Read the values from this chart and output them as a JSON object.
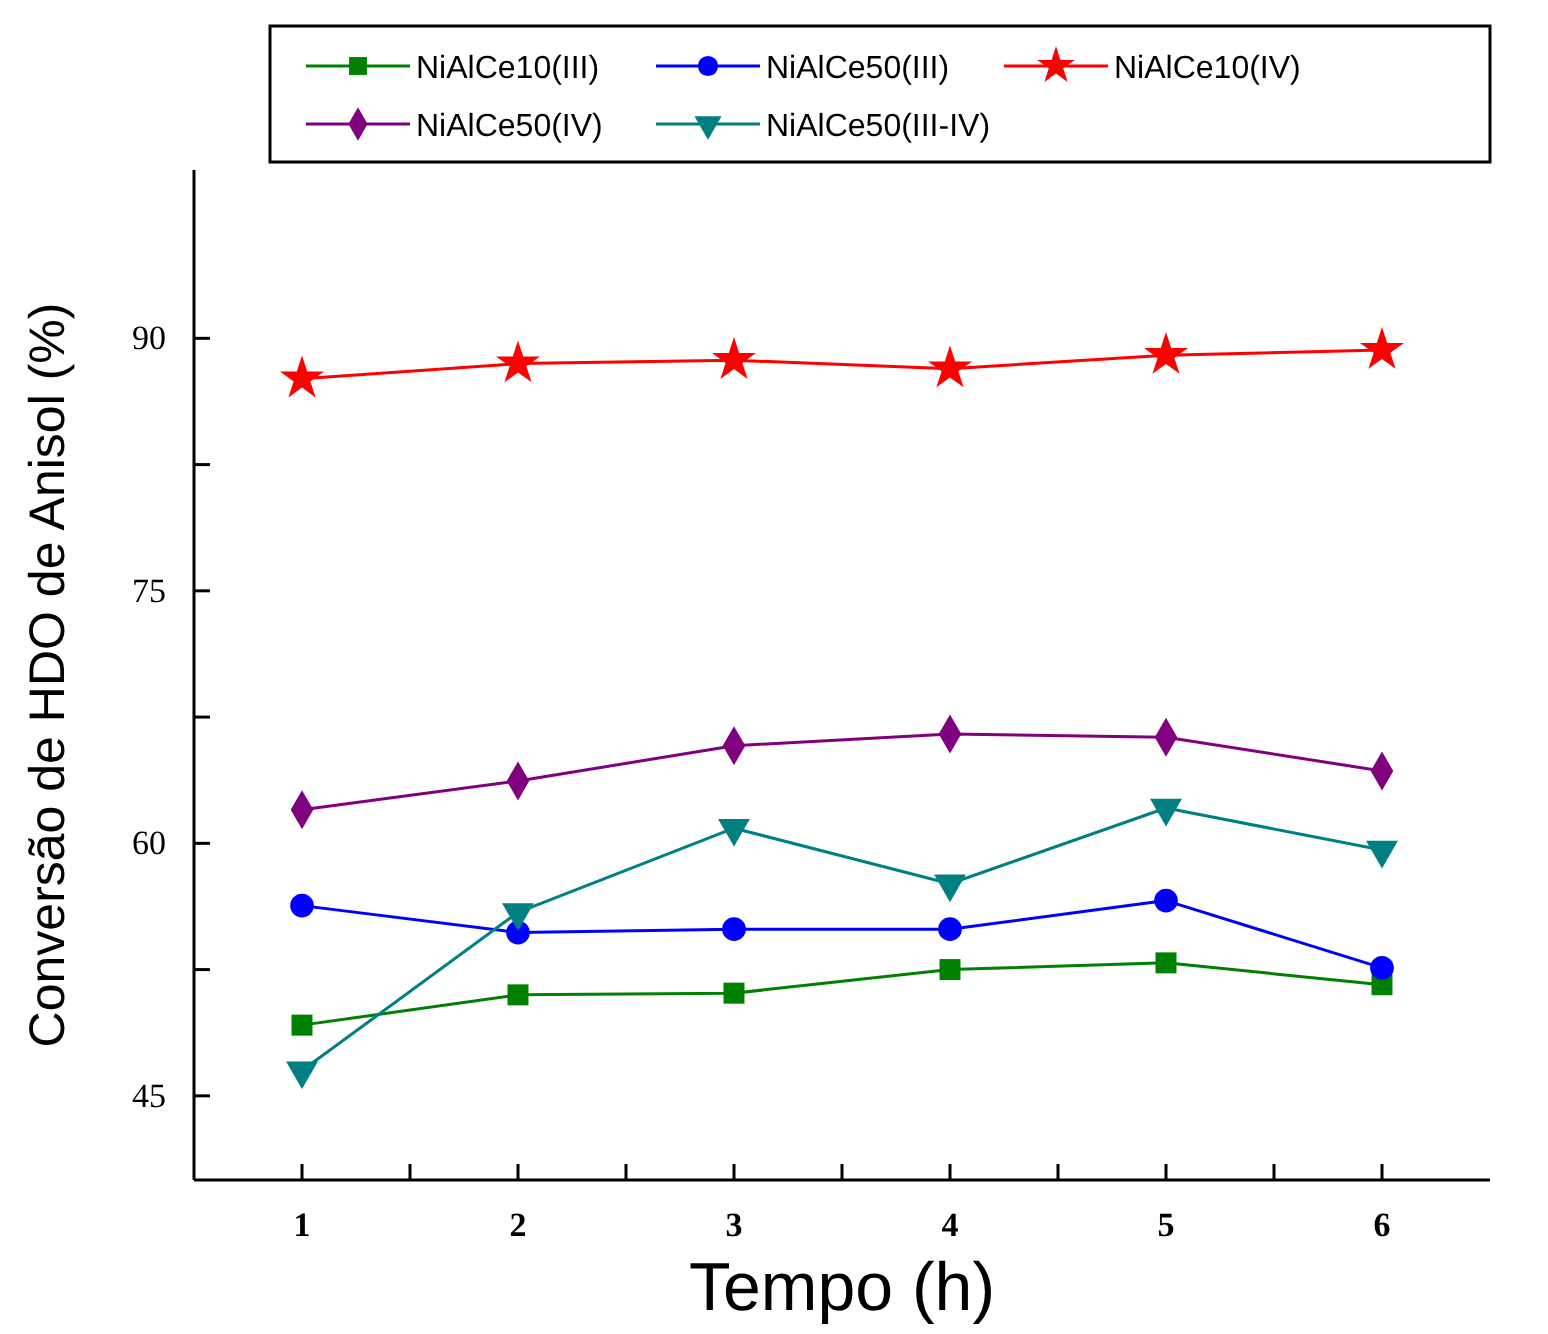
{
  "chart_data": {
    "type": "line",
    "xlabel": "Tempo (h)",
    "ylabel": "Conversão de HDO de Anisol (%)",
    "x": [
      1,
      2,
      3,
      4,
      5,
      6
    ],
    "xlim": [
      0.5,
      6.5
    ],
    "xticks": [
      1,
      {
        "value": 1.5,
        "label": null
      },
      2,
      {
        "value": 2.5,
        "label": null
      },
      3,
      {
        "value": 3.5,
        "label": null
      },
      4,
      {
        "value": 4.5,
        "label": null
      },
      5,
      {
        "value": 5.5,
        "label": null
      },
      6
    ],
    "ylim": [
      40,
      100
    ],
    "yticks": [
      45,
      {
        "value": 52.5,
        "label": null
      },
      60,
      {
        "value": 67.5,
        "label": null
      },
      75,
      {
        "value": 82.5,
        "label": null
      },
      90
    ],
    "grid": false,
    "legend": "top",
    "series": [
      {
        "name": "NiAlCe10(III)",
        "color": "#008000",
        "marker": "square",
        "values": [
          49.2,
          51.0,
          51.1,
          52.5,
          52.9,
          51.6
        ]
      },
      {
        "name": "NiAlCe50(III)",
        "color": "#0000ff",
        "marker": "circle",
        "values": [
          56.3,
          54.7,
          54.9,
          54.9,
          56.6,
          52.6
        ]
      },
      {
        "name": "NiAlCe10(IV)",
        "color": "#ff0000",
        "marker": "star",
        "values": [
          87.6,
          88.5,
          88.7,
          88.2,
          89.0,
          89.3
        ]
      },
      {
        "name": "NiAlCe50(IV)",
        "color": "#800080",
        "marker": "diamond",
        "values": [
          62.0,
          63.7,
          65.8,
          66.5,
          66.3,
          64.3
        ]
      },
      {
        "name": "NiAlCe50(III-IV)",
        "color": "#008080",
        "marker": "triangle",
        "values": [
          46.5,
          55.9,
          60.9,
          57.6,
          62.1,
          59.6
        ]
      }
    ]
  }
}
